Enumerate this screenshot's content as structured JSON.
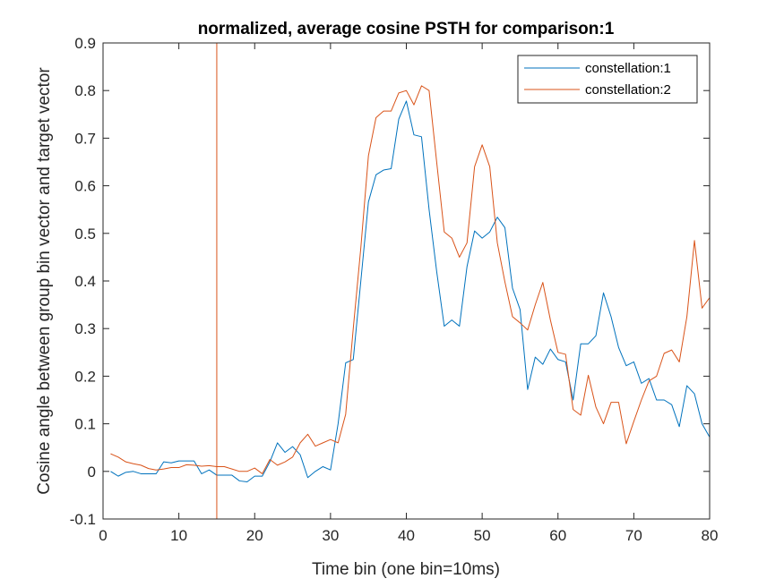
{
  "chart_data": {
    "type": "line",
    "title": "normalized, average cosine PSTH for comparison:1",
    "xlabel": "Time bin (one bin=10ms)",
    "ylabel": "Cosine angle between group bin vector and target vector",
    "xlim": [
      0,
      80
    ],
    "ylim": [
      -0.1,
      0.9
    ],
    "xticks": [
      0,
      10,
      20,
      30,
      40,
      50,
      60,
      70,
      80
    ],
    "yticks": [
      -0.1,
      0,
      0.1,
      0.2,
      0.3,
      0.4,
      0.5,
      0.6,
      0.7,
      0.8,
      0.9
    ],
    "xtick_labels": [
      "0",
      "10",
      "20",
      "30",
      "40",
      "50",
      "60",
      "70",
      "80"
    ],
    "ytick_labels": [
      "-0.1",
      "0",
      "0.1",
      "0.2",
      "0.3",
      "0.4",
      "0.5",
      "0.6",
      "0.7",
      "0.8",
      "0.9"
    ],
    "grid": false,
    "legend_position": "top-right",
    "vline": {
      "x": 15,
      "color": "#d95319"
    },
    "series": [
      {
        "name": "constellation:1",
        "color": "#0072bd",
        "x": [
          1,
          2,
          3,
          4,
          5,
          6,
          7,
          8,
          9,
          10,
          11,
          12,
          13,
          14,
          15,
          16,
          17,
          18,
          19,
          20,
          21,
          22,
          23,
          24,
          25,
          26,
          27,
          28,
          29,
          30,
          31,
          32,
          33,
          34,
          35,
          36,
          37,
          38,
          39,
          40,
          41,
          42,
          43,
          44,
          45,
          46,
          47,
          48,
          49,
          50,
          51,
          52,
          53,
          54,
          55,
          56,
          57,
          58,
          59,
          60,
          61,
          62,
          63,
          64,
          65,
          66,
          67,
          68,
          69,
          70,
          71,
          72,
          73,
          74,
          75,
          76,
          77,
          78,
          79,
          80
        ],
        "values": [
          0.0,
          -0.01,
          -0.002,
          0.0,
          -0.005,
          -0.005,
          -0.005,
          0.02,
          0.018,
          0.022,
          0.022,
          0.022,
          -0.005,
          0.003,
          -0.008,
          -0.008,
          -0.008,
          -0.02,
          -0.022,
          -0.01,
          -0.01,
          0.02,
          0.06,
          0.04,
          0.052,
          0.035,
          -0.013,
          0.0,
          0.01,
          0.003,
          0.1,
          0.228,
          0.235,
          0.4,
          0.566,
          0.623,
          0.633,
          0.636,
          0.74,
          0.778,
          0.707,
          0.703,
          0.55,
          0.42,
          0.305,
          0.318,
          0.305,
          0.43,
          0.505,
          0.49,
          0.503,
          0.534,
          0.512,
          0.385,
          0.34,
          0.172,
          0.24,
          0.225,
          0.257,
          0.235,
          0.23,
          0.15,
          0.268,
          0.268,
          0.285,
          0.375,
          0.325,
          0.26,
          0.222,
          0.23,
          0.185,
          0.195,
          0.15,
          0.15,
          0.14,
          0.094,
          0.18,
          0.163,
          0.1,
          0.072
        ]
      },
      {
        "name": "constellation:2",
        "color": "#d95319",
        "x": [
          1,
          2,
          3,
          4,
          5,
          6,
          7,
          8,
          9,
          10,
          11,
          12,
          13,
          14,
          15,
          16,
          17,
          18,
          19,
          20,
          21,
          22,
          23,
          24,
          25,
          26,
          27,
          28,
          29,
          30,
          31,
          32,
          33,
          34,
          35,
          36,
          37,
          38,
          39,
          40,
          41,
          42,
          43,
          44,
          45,
          46,
          47,
          48,
          49,
          50,
          51,
          52,
          53,
          54,
          55,
          56,
          57,
          58,
          59,
          60,
          61,
          62,
          63,
          64,
          65,
          66,
          67,
          68,
          69,
          70,
          71,
          72,
          73,
          74,
          75,
          76,
          77,
          78,
          79,
          80
        ],
        "values": [
          0.037,
          0.03,
          0.02,
          0.016,
          0.013,
          0.006,
          0.003,
          0.005,
          0.008,
          0.008,
          0.014,
          0.013,
          0.011,
          0.012,
          0.01,
          0.01,
          0.005,
          0.0,
          0.0,
          0.007,
          -0.005,
          0.025,
          0.013,
          0.02,
          0.03,
          0.06,
          0.078,
          0.053,
          0.06,
          0.067,
          0.06,
          0.12,
          0.3,
          0.47,
          0.663,
          0.743,
          0.757,
          0.757,
          0.795,
          0.8,
          0.77,
          0.81,
          0.8,
          0.65,
          0.503,
          0.49,
          0.45,
          0.48,
          0.64,
          0.686,
          0.64,
          0.48,
          0.398,
          0.325,
          0.312,
          0.297,
          0.35,
          0.397,
          0.318,
          0.25,
          0.246,
          0.13,
          0.118,
          0.202,
          0.135,
          0.1,
          0.145,
          0.145,
          0.058,
          0.105,
          0.15,
          0.19,
          0.2,
          0.248,
          0.255,
          0.23,
          0.325,
          0.485,
          0.343,
          0.365
        ]
      }
    ]
  }
}
